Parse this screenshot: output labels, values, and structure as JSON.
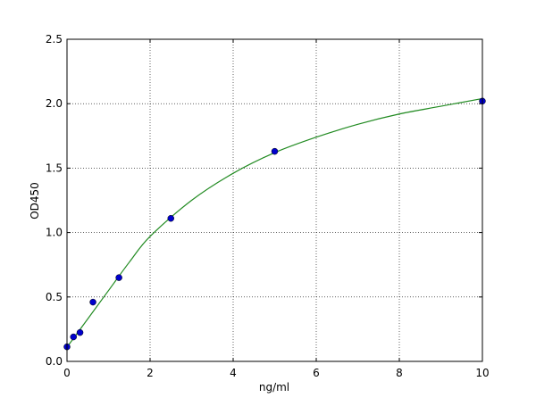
{
  "chart_data": {
    "type": "scatter",
    "title": "",
    "xlabel": "ng/ml",
    "ylabel": "OD450",
    "xlim": [
      0,
      10
    ],
    "ylim": [
      0,
      2.5
    ],
    "xticks": [
      "0",
      "2",
      "4",
      "6",
      "8",
      "10"
    ],
    "yticks": [
      "0.0",
      "0.5",
      "1.0",
      "1.5",
      "2.0",
      "2.5"
    ],
    "grid": true,
    "points": {
      "x": [
        0,
        0.156,
        0.313,
        0.625,
        1.25,
        2.5,
        5,
        10
      ],
      "y": [
        0.113,
        0.19,
        0.224,
        0.46,
        0.65,
        1.11,
        1.63,
        2.02
      ],
      "color": "#0000cc"
    },
    "fit_curve": {
      "x": [
        0,
        0.5,
        1,
        1.5,
        2,
        3,
        4,
        5,
        6,
        7,
        8,
        9,
        10
      ],
      "y": [
        0.11,
        0.33,
        0.55,
        0.77,
        0.97,
        1.25,
        1.46,
        1.62,
        1.74,
        1.84,
        1.92,
        1.98,
        2.04
      ],
      "color": "#228b22"
    }
  }
}
